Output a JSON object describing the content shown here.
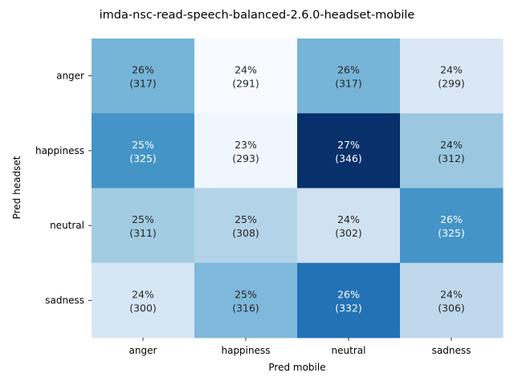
{
  "chart_data": {
    "type": "heatmap",
    "title": "imda-nsc-read-speech-balanced-2.6.0-headset-mobile",
    "xlabel": "Pred mobile",
    "ylabel": "Pred headset",
    "x_categories": [
      "anger",
      "happiness",
      "neutral",
      "sadness"
    ],
    "y_categories": [
      "anger",
      "happiness",
      "neutral",
      "sadness"
    ],
    "counts": [
      [
        317,
        291,
        317,
        299
      ],
      [
        325,
        293,
        346,
        312
      ],
      [
        311,
        308,
        302,
        325
      ],
      [
        300,
        316,
        332,
        306
      ]
    ],
    "percent_labels": [
      [
        "26%",
        "24%",
        "26%",
        "24%"
      ],
      [
        "25%",
        "23%",
        "27%",
        "24%"
      ],
      [
        "25%",
        "25%",
        "24%",
        "26%"
      ],
      [
        "24%",
        "25%",
        "26%",
        "24%"
      ]
    ],
    "count_labels": [
      [
        "(317)",
        "(291)",
        "(317)",
        "(299)"
      ],
      [
        "(325)",
        "(293)",
        "(346)",
        "(312)"
      ],
      [
        "(311)",
        "(308)",
        "(302)",
        "(325)"
      ],
      [
        "(300)",
        "(316)",
        "(332)",
        "(306)"
      ]
    ],
    "colormap": "Blues",
    "colorbar": false
  }
}
